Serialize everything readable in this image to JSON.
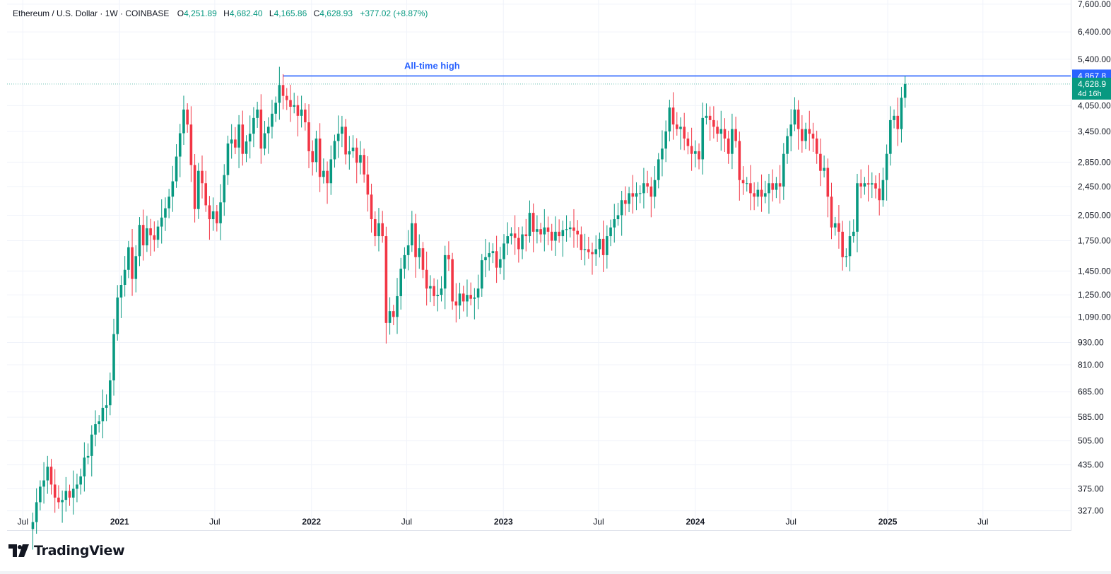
{
  "header": {
    "symbol": "Ethereum / U.S. Dollar · 1W · COINBASE",
    "o_label": "O",
    "o_value": "4,251.89",
    "h_label": "H",
    "h_value": "4,682.40",
    "l_label": "L",
    "l_value": "4,165.86",
    "c_label": "C",
    "c_value": "4,628.93",
    "change": "+377.02 (+8.87%)"
  },
  "brand": {
    "name": "TradingView"
  },
  "colors": {
    "up": "#26a69a",
    "up_body": "#089981",
    "down": "#f23645",
    "ath_line": "#2962ff",
    "ath_text": "#2962ff",
    "price_tag": "#089981",
    "axis_text": "#131722",
    "grid": "#f0f3fa"
  },
  "price_tags": {
    "ath": {
      "value": "4,867.8",
      "price": 4867.8
    },
    "last": {
      "value": "4,628.9",
      "countdown": "4d 16h",
      "price": 4628.93
    }
  },
  "annotations": [
    {
      "text": "All-time high",
      "price": 4867.8,
      "x_start": "2021-11-08"
    }
  ],
  "chart_data": {
    "type": "candlestick",
    "title": "Ethereum / U.S. Dollar · 1W · COINBASE",
    "scale": "log",
    "ylim": [
      290,
      7800
    ],
    "xlim": [
      "2020-06-01",
      "2025-12-15"
    ],
    "y_ticks": [
      327,
      375,
      435,
      505,
      585,
      685,
      810,
      930,
      1090,
      1250,
      1450,
      1750,
      2050,
      2450,
      2850,
      3450,
      4050,
      5400,
      6400,
      7600
    ],
    "y_tick_labels": [
      "327.00",
      "375.00",
      "435.00",
      "505.00",
      "585.00",
      "685.00",
      "810.00",
      "930.00",
      "1,090.00",
      "1,250.00",
      "1,450.00",
      "1,750.00",
      "2,050.00",
      "2,450.00",
      "2,850.00",
      "3,450.00",
      "4,050.00",
      "5,400.00",
      "6,400.00",
      "7,600.00"
    ],
    "x_ticks": [
      {
        "label": "Jul",
        "date": "2020-07-01",
        "bold": false
      },
      {
        "label": "2021",
        "date": "2021-01-01",
        "bold": true
      },
      {
        "label": "Jul",
        "date": "2021-07-01",
        "bold": false
      },
      {
        "label": "2022",
        "date": "2022-01-01",
        "bold": true
      },
      {
        "label": "Jul",
        "date": "2022-07-01",
        "bold": false
      },
      {
        "label": "2023",
        "date": "2023-01-01",
        "bold": true
      },
      {
        "label": "Jul",
        "date": "2023-07-01",
        "bold": false
      },
      {
        "label": "2024",
        "date": "2024-01-01",
        "bold": true
      },
      {
        "label": "Jul",
        "date": "2024-07-01",
        "bold": false
      },
      {
        "label": "2025",
        "date": "2025-01-01",
        "bold": true
      },
      {
        "label": "Jul",
        "date": "2025-07-01",
        "bold": false
      }
    ],
    "grid": true,
    "candle_interval": "1W",
    "start_date": "2020-07-20",
    "close_series": [
      305,
      345,
      380,
      395,
      430,
      385,
      355,
      345,
      350,
      370,
      355,
      375,
      385,
      405,
      455,
      460,
      525,
      560,
      570,
      620,
      630,
      735,
      980,
      1230,
      1330,
      1460,
      1680,
      1380,
      1590,
      1930,
      1700,
      1890,
      1810,
      1760,
      1910,
      2020,
      2140,
      2300,
      2530,
      2950,
      3410,
      3950,
      3600,
      2800,
      2130,
      2700,
      2500,
      2180,
      2000,
      2100,
      1950,
      2220,
      2630,
      3200,
      3280,
      3120,
      3600,
      3000,
      3240,
      3400,
      3750,
      3950,
      3100,
      3410,
      3550,
      3850,
      4120,
      4600,
      4300,
      4190,
      4020,
      4060,
      3800,
      3950,
      3650,
      3050,
      2850,
      3300,
      2600,
      2700,
      2500,
      2900,
      3250,
      3400,
      3550,
      2990,
      3050,
      3120,
      2840,
      2980,
      2640,
      2330,
      2000,
      1800,
      1950,
      1800,
      1050,
      1130,
      1090,
      1240,
      1470,
      1600,
      1700,
      1950,
      1580,
      1670,
      1460,
      1300,
      1320,
      1240,
      1250,
      1300,
      1600,
      1560,
      1200,
      1170,
      1260,
      1200,
      1250,
      1220,
      1230,
      1300,
      1550,
      1580,
      1620,
      1640,
      1480,
      1560,
      1720,
      1800,
      1830,
      1780,
      1660,
      1820,
      1800,
      2080,
      1850,
      1880,
      1820,
      1900,
      1850,
      1750,
      1850,
      1800,
      1870,
      1880,
      1900,
      1860,
      1820,
      1650,
      1660,
      1630,
      1610,
      1660,
      1770,
      1600,
      1800,
      1900,
      2000,
      2050,
      2250,
      2200,
      2350,
      2300,
      2350,
      2350,
      2500,
      2450,
      2300,
      2550,
      2900,
      3100,
      3450,
      4000,
      3600,
      3500,
      3550,
      3300,
      3150,
      3000,
      3050,
      2900,
      3750,
      3800,
      3700,
      3550,
      3400,
      3500,
      3300,
      3000,
      3500,
      3250,
      2550,
      2500,
      2500,
      2350,
      2300,
      2400,
      2300,
      2350,
      2500,
      2400,
      2500,
      2450,
      3000,
      3350,
      3600,
      3950,
      3500,
      3250,
      3500,
      3400,
      3300,
      3000,
      2700,
      2750,
      2300,
      1900,
      1950,
      1850,
      1580,
      1590,
      1800,
      1850,
      2500,
      2450,
      2500,
      2480,
      2500,
      2420,
      2250,
      2550,
      3000,
      3700,
      3800,
      3500,
      4250,
      4628.93
    ]
  }
}
